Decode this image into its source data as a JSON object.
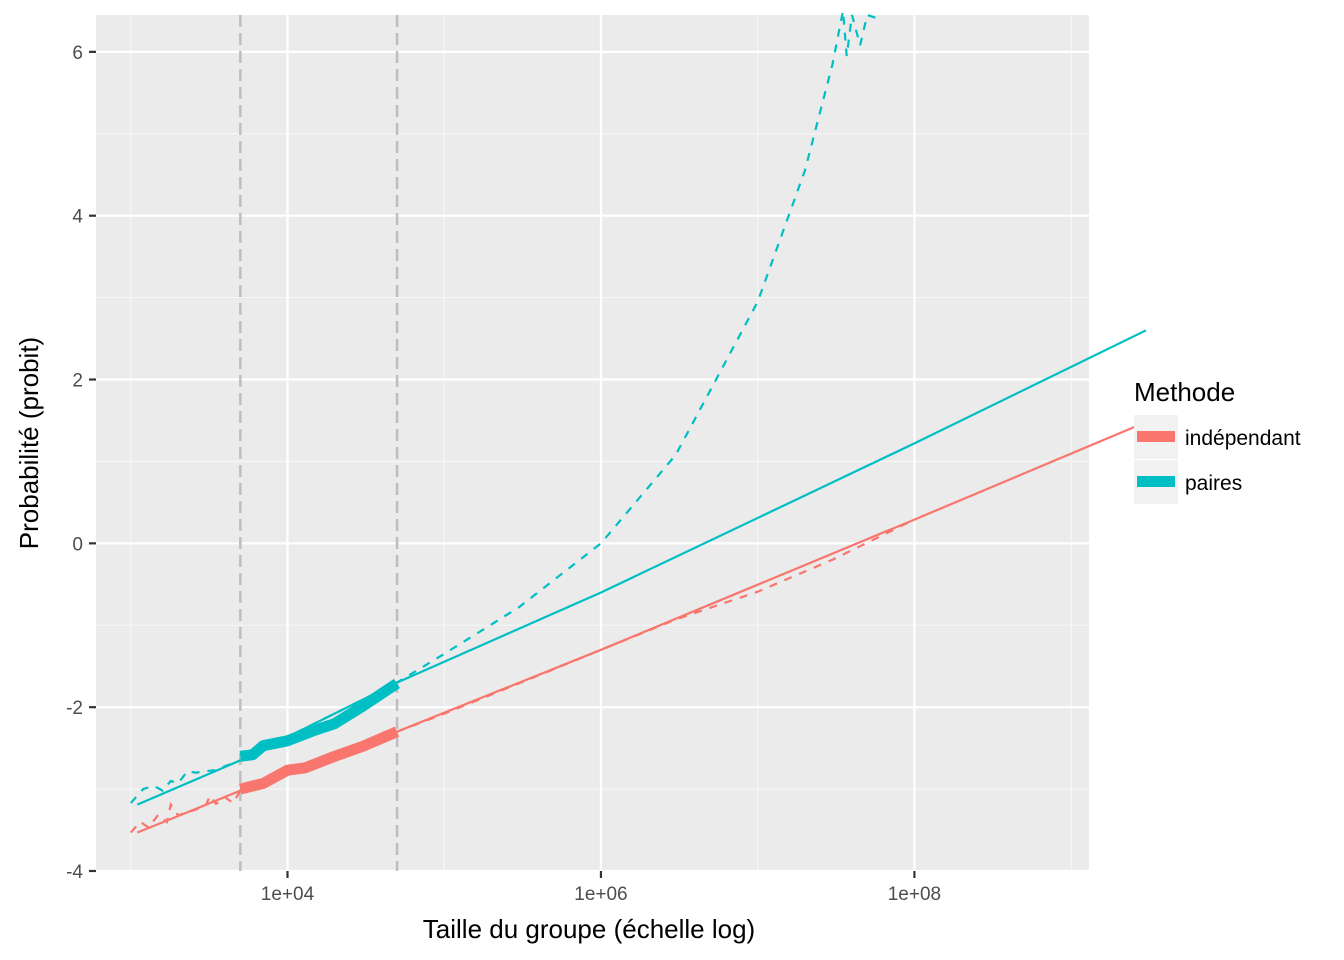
{
  "chart_data": {
    "type": "line",
    "xlabel": "Taille du groupe (échelle log)",
    "ylabel": "Probabilité (probit)",
    "x_scale": "log10",
    "xlim": [
      600,
      1300000000.0
    ],
    "ylim": [
      -4,
      6.45
    ],
    "x_ticks": [
      {
        "value": 10000,
        "label": "1e+04"
      },
      {
        "value": 1000000,
        "label": "1e+06"
      },
      {
        "value": 100000000,
        "label": "1e+08"
      }
    ],
    "x_minor_ticks": [
      1000,
      100000,
      10000000,
      1000000000
    ],
    "y_ticks": [
      {
        "value": -4,
        "label": "-4"
      },
      {
        "value": -2,
        "label": "-2"
      },
      {
        "value": 0,
        "label": "0"
      },
      {
        "value": 2,
        "label": "2"
      },
      {
        "value": 4,
        "label": "4"
      },
      {
        "value": 6,
        "label": "6"
      }
    ],
    "y_minor_ticks": [
      -3,
      -1,
      1,
      3,
      5
    ],
    "grid": true,
    "reference_lines_x": [
      5000,
      50000
    ],
    "legend": {
      "title": "Methode",
      "position": "right"
    },
    "series": [
      {
        "name": "indépendant",
        "color": "#F8766D",
        "fit_line": [
          [
            1100,
            -3.53
          ],
          [
            2000,
            -3.33
          ],
          [
            5000,
            -3.02
          ],
          [
            50000,
            -2.3
          ],
          [
            1000000,
            -1.3
          ],
          [
            100000000,
            0.29
          ],
          [
            3000000000,
            1.48
          ]
        ],
        "dashed": [
          [
            1000,
            -3.53
          ],
          [
            1150,
            -3.4
          ],
          [
            1300,
            -3.47
          ],
          [
            1500,
            -3.31
          ],
          [
            1700,
            -3.4
          ],
          [
            1800,
            -3.19
          ],
          [
            2000,
            -3.32
          ],
          [
            2500,
            -3.26
          ],
          [
            3000,
            -3.21
          ],
          [
            3200,
            -3.08
          ],
          [
            3500,
            -3.18
          ],
          [
            4000,
            -3.1
          ],
          [
            4500,
            -3.17
          ],
          [
            5000,
            -3.02
          ],
          [
            50000,
            -2.3
          ],
          [
            100000,
            -2.08
          ],
          [
            300000,
            -1.71
          ],
          [
            1000000,
            -1.3
          ],
          [
            3000000,
            -0.93
          ],
          [
            10000000,
            -0.59
          ],
          [
            30000000,
            -0.2
          ],
          [
            100000000,
            0.29
          ]
        ],
        "observed": [
          [
            5000,
            -3.0
          ],
          [
            7000,
            -2.93
          ],
          [
            10000,
            -2.77
          ],
          [
            13000,
            -2.74
          ],
          [
            20000,
            -2.6
          ],
          [
            30000,
            -2.48
          ],
          [
            50000,
            -2.3
          ]
        ]
      },
      {
        "name": "paires",
        "color": "#00BFC4",
        "fit_line": [
          [
            1100,
            -3.19
          ],
          [
            5000,
            -2.65
          ],
          [
            50000,
            -1.7
          ],
          [
            1000000,
            -0.6
          ],
          [
            100000000,
            1.22
          ],
          [
            3000000000,
            2.6
          ]
        ],
        "dashed": [
          [
            1000,
            -3.17
          ],
          [
            1200,
            -3.0
          ],
          [
            1400,
            -2.96
          ],
          [
            1600,
            -3.02
          ],
          [
            1800,
            -2.9
          ],
          [
            2000,
            -2.93
          ],
          [
            2300,
            -2.78
          ],
          [
            2600,
            -2.8
          ],
          [
            3000,
            -2.78
          ],
          [
            3500,
            -2.77
          ],
          [
            4000,
            -2.72
          ],
          [
            5000,
            -2.65
          ],
          [
            50000,
            -1.7
          ],
          [
            100000,
            -1.35
          ],
          [
            300000,
            -0.78
          ],
          [
            1000000,
            0.0
          ],
          [
            3000000,
            1.08
          ],
          [
            10000000,
            2.95
          ],
          [
            20000000,
            4.55
          ],
          [
            30000000,
            5.85
          ],
          [
            35000000,
            6.5
          ],
          [
            37000000,
            5.95
          ],
          [
            40000000,
            6.45
          ],
          [
            45000000,
            6.08
          ],
          [
            50000000,
            6.45
          ],
          [
            60000000,
            6.4
          ]
        ],
        "observed": [
          [
            5000,
            -2.6
          ],
          [
            6000,
            -2.58
          ],
          [
            7000,
            -2.47
          ],
          [
            10000,
            -2.41
          ],
          [
            15000,
            -2.28
          ],
          [
            20000,
            -2.2
          ],
          [
            30000,
            -1.99
          ],
          [
            50000,
            -1.71
          ]
        ]
      }
    ]
  }
}
